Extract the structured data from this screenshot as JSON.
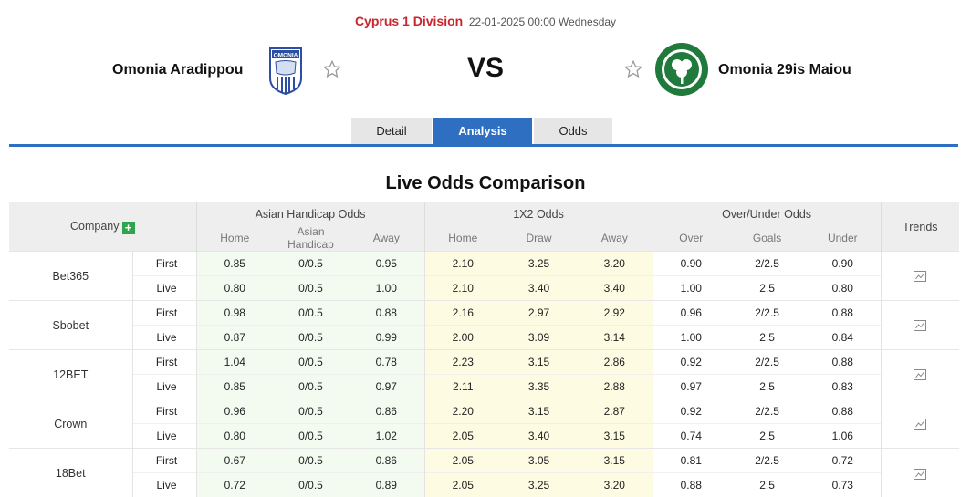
{
  "match": {
    "league": "Cyprus 1 Division",
    "datetime": "22-01-2025 00:00 Wednesday",
    "home_team": "Omonia Aradippou",
    "away_team": "Omonia 29is Maiou",
    "vs": "VS",
    "home_logo_text": "OMONIA"
  },
  "tabs": [
    {
      "label": "Detail",
      "active": false
    },
    {
      "label": "Analysis",
      "active": true
    },
    {
      "label": "Odds",
      "active": false
    }
  ],
  "section_title": "Live Odds Comparison",
  "table": {
    "company_header": "Company",
    "trends_header": "Trends",
    "groups": [
      "Asian Handicap Odds",
      "1X2 Odds",
      "Over/Under Odds"
    ],
    "sub_headers": [
      "Home",
      "Asian Handicap",
      "Away",
      "Home",
      "Draw",
      "Away",
      "Over",
      "Goals",
      "Under"
    ],
    "rows": [
      {
        "company": "Bet365",
        "first": {
          "stage": "First",
          "ah": [
            "0.85",
            "0/0.5",
            "0.95"
          ],
          "x12": [
            "2.10",
            "3.25",
            "3.20"
          ],
          "ou": [
            "0.90",
            "2/2.5",
            "0.90"
          ]
        },
        "live": {
          "stage": "Live",
          "ah": [
            "0.80",
            "0/0.5",
            "1.00"
          ],
          "x12": [
            "2.10",
            "3.40",
            "3.40"
          ],
          "ou": [
            "1.00",
            "2.5",
            "0.80"
          ]
        }
      },
      {
        "company": "Sbobet",
        "first": {
          "stage": "First",
          "ah": [
            "0.98",
            "0/0.5",
            "0.88"
          ],
          "x12": [
            "2.16",
            "2.97",
            "2.92"
          ],
          "ou": [
            "0.96",
            "2/2.5",
            "0.88"
          ]
        },
        "live": {
          "stage": "Live",
          "ah": [
            "0.87",
            "0/0.5",
            "0.99"
          ],
          "x12": [
            "2.00",
            "3.09",
            "3.14"
          ],
          "ou": [
            "1.00",
            "2.5",
            "0.84"
          ]
        }
      },
      {
        "company": "12BET",
        "first": {
          "stage": "First",
          "ah": [
            "1.04",
            "0/0.5",
            "0.78"
          ],
          "x12": [
            "2.23",
            "3.15",
            "2.86"
          ],
          "ou": [
            "0.92",
            "2/2.5",
            "0.88"
          ]
        },
        "live": {
          "stage": "Live",
          "ah": [
            "0.85",
            "0/0.5",
            "0.97"
          ],
          "x12": [
            "2.11",
            "3.35",
            "2.88"
          ],
          "ou": [
            "0.97",
            "2.5",
            "0.83"
          ]
        }
      },
      {
        "company": "Crown",
        "first": {
          "stage": "First",
          "ah": [
            "0.96",
            "0/0.5",
            "0.86"
          ],
          "x12": [
            "2.20",
            "3.15",
            "2.87"
          ],
          "ou": [
            "0.92",
            "2/2.5",
            "0.88"
          ]
        },
        "live": {
          "stage": "Live",
          "ah": [
            "0.80",
            "0/0.5",
            "1.02"
          ],
          "x12": [
            "2.05",
            "3.40",
            "3.15"
          ],
          "ou": [
            "0.74",
            "2.5",
            "1.06"
          ]
        }
      },
      {
        "company": "18Bet",
        "first": {
          "stage": "First",
          "ah": [
            "0.67",
            "0/0.5",
            "0.86"
          ],
          "x12": [
            "2.05",
            "3.05",
            "3.15"
          ],
          "ou": [
            "0.81",
            "2/2.5",
            "0.72"
          ]
        },
        "live": {
          "stage": "Live",
          "ah": [
            "0.72",
            "0/0.5",
            "0.89"
          ],
          "x12": [
            "2.05",
            "3.25",
            "3.20"
          ],
          "ou": [
            "0.88",
            "2.5",
            "0.73"
          ]
        }
      }
    ]
  },
  "icons": {
    "favorite_home": "star-outline-icon",
    "favorite_away": "star-outline-icon",
    "add_company": "plus-icon",
    "trend": "line-chart-icon"
  },
  "colors": {
    "league": "#c8262e",
    "accent": "#2f6fc1",
    "plus": "#2da44e",
    "ah_bg": "#f3fbf1",
    "x12_bg": "#fdfbe2"
  }
}
